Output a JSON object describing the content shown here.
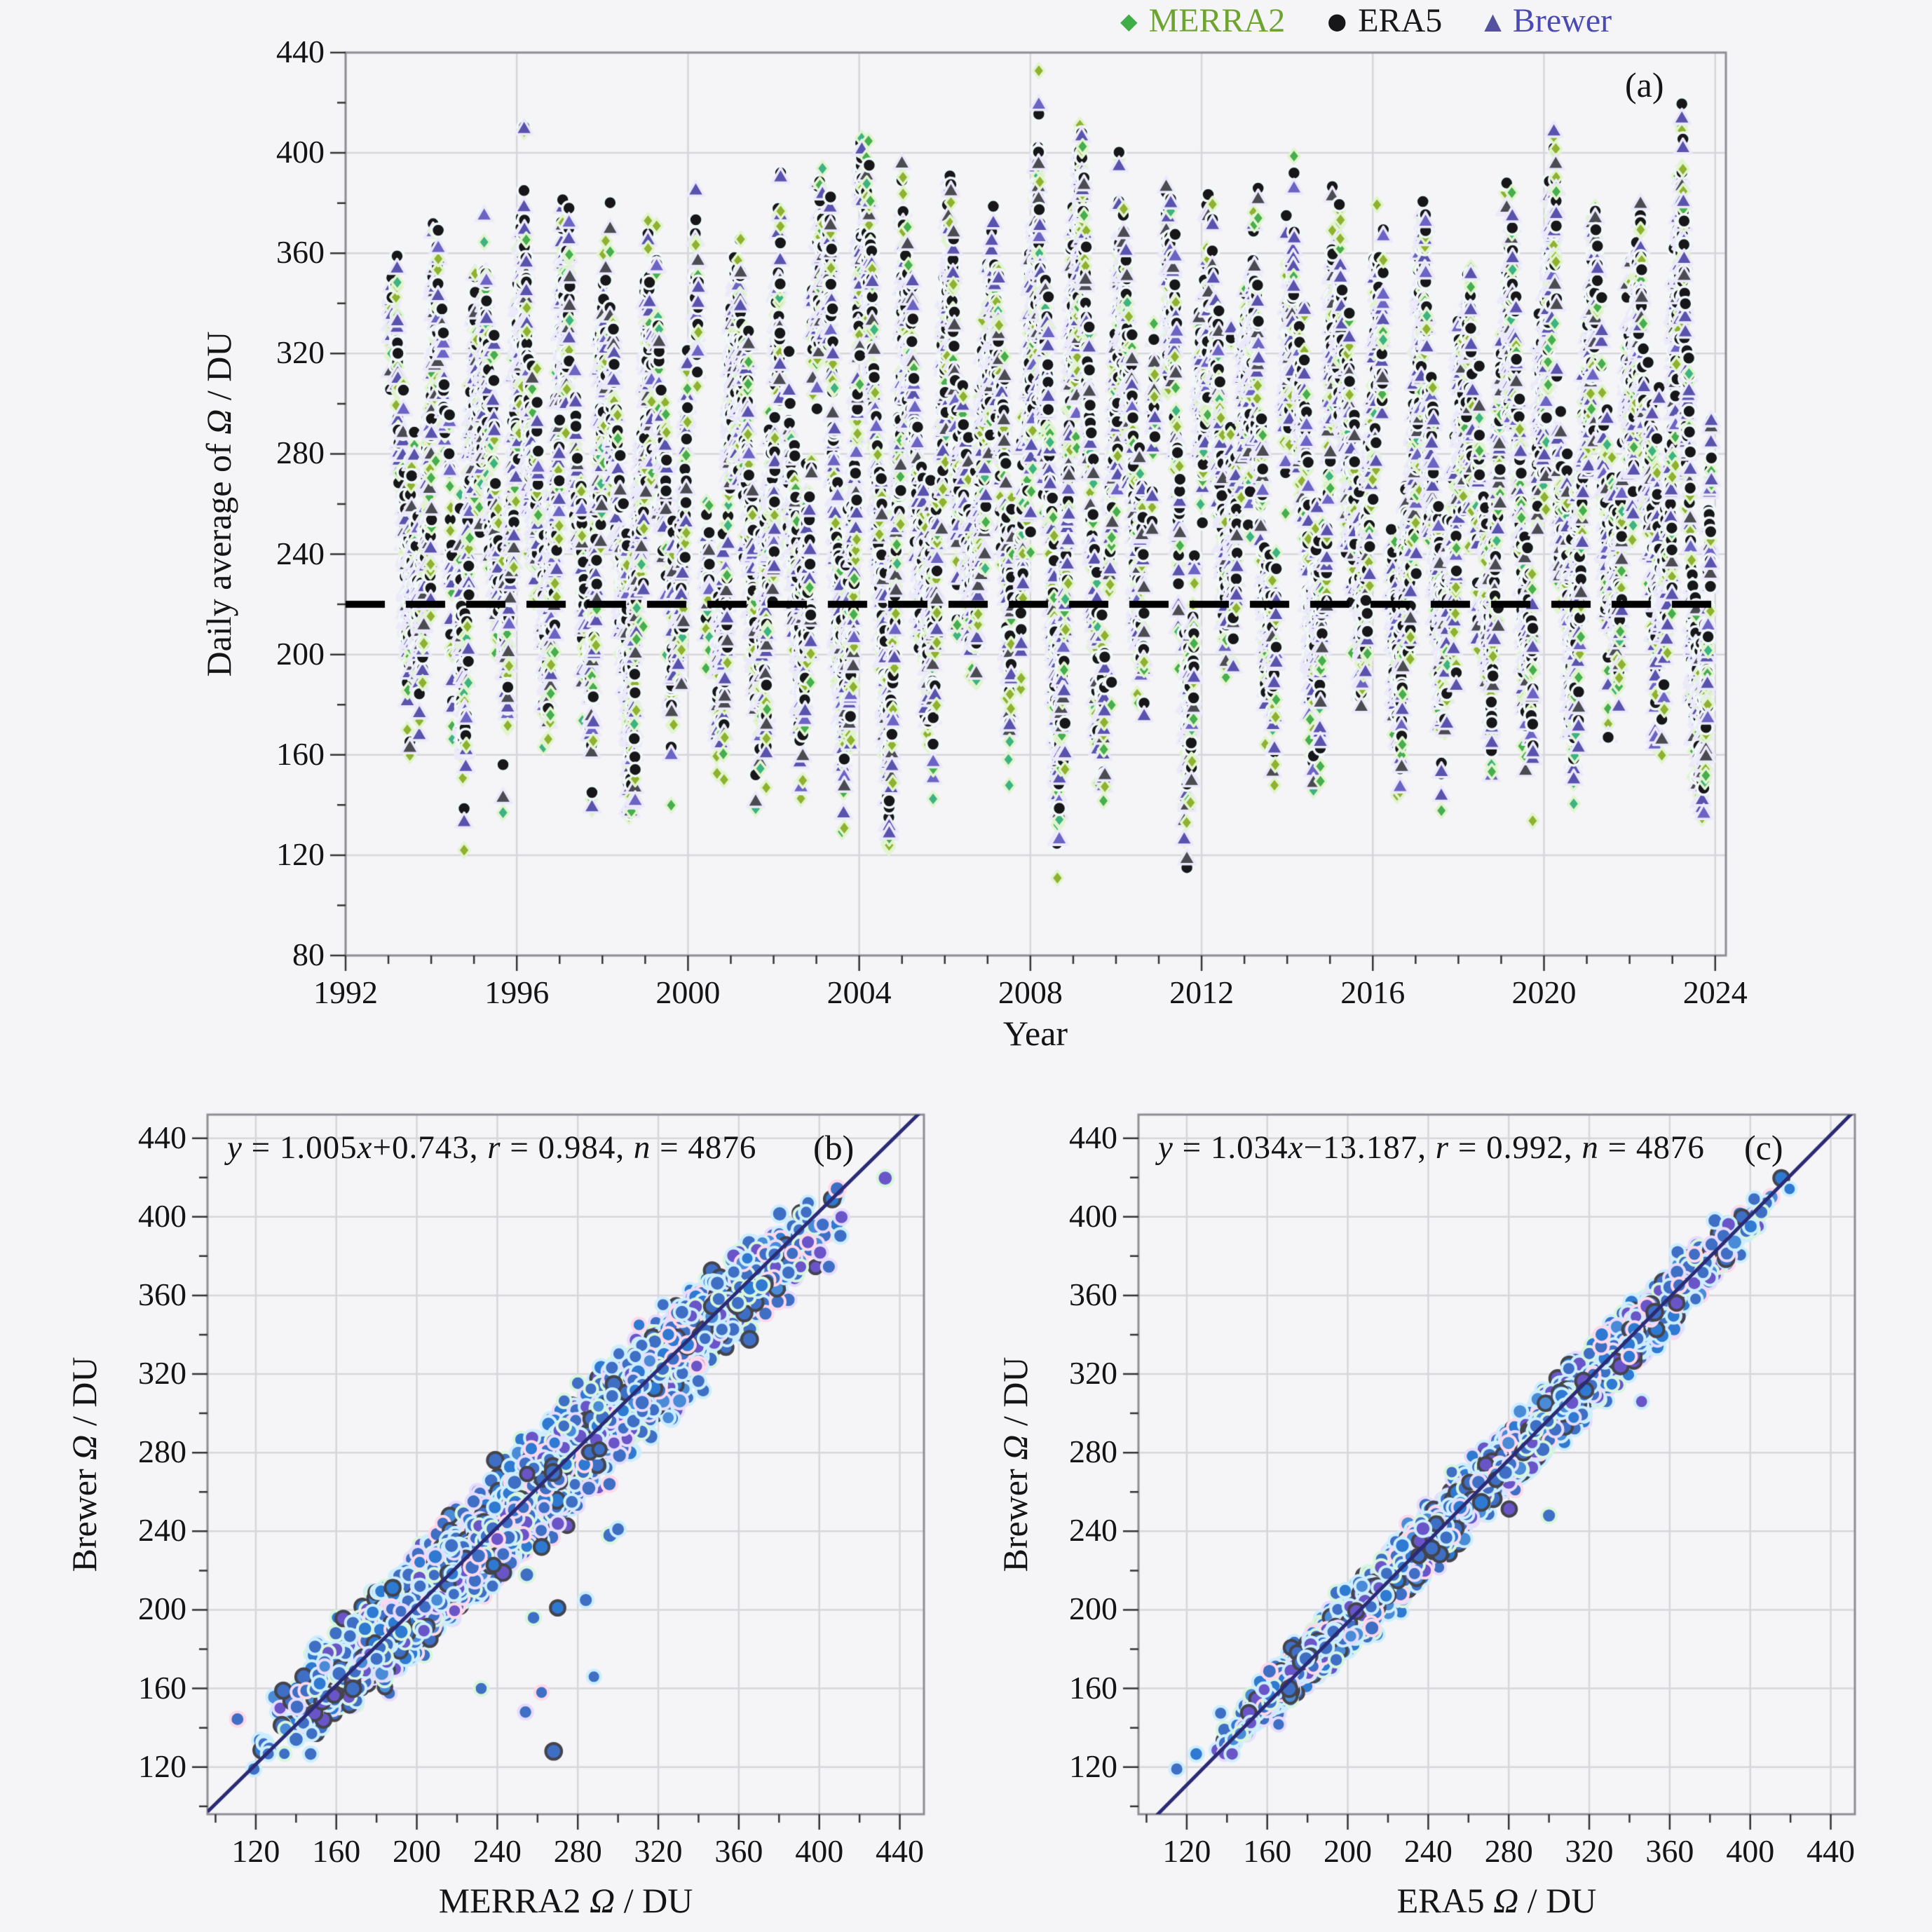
{
  "page": {
    "background": "#f5f5f7",
    "text_color": "#111111"
  },
  "legend": {
    "items": [
      {
        "label": "MERRA2",
        "glyph": "◆",
        "marker_color": "#3fae49",
        "label_color": "#6da32f"
      },
      {
        "label": "ERA5",
        "glyph": "●",
        "marker_color": "#17171a",
        "label_color": "#17171a"
      },
      {
        "label": "Brewer",
        "glyph": "▲",
        "marker_color": "#55519e",
        "label_color": "#4a4ab4"
      }
    ]
  },
  "chart_data": [
    {
      "type": "scatter",
      "panel_label": "(a)",
      "xlabel": "Year",
      "ylabel": "Daily average of Ω / DU",
      "xlim": [
        1992,
        2024.25
      ],
      "ylim": [
        80,
        440
      ],
      "x_ticks": [
        1992,
        1996,
        2000,
        2004,
        2008,
        2012,
        2016,
        2020,
        2024
      ],
      "y_ticks": [
        80,
        120,
        160,
        200,
        240,
        280,
        320,
        360,
        400,
        440
      ],
      "x_minor_step": 1,
      "y_minor_step": 20,
      "grid": true,
      "legend_position": "top-right-above-plot",
      "reference_line": {
        "y": 220,
        "color": "#000000",
        "width": 10,
        "dash": [
          56,
          30
        ]
      },
      "series": [
        {
          "name": "MERRA2",
          "marker": "diamond",
          "fills": [
            "#8fb12f",
            "#46ae4e",
            "#3db382"
          ],
          "halo": "#e2f4cf"
        },
        {
          "name": "ERA5",
          "marker": "circle",
          "fills": [
            "#17171a"
          ],
          "halo": "#f2f8f9"
        },
        {
          "name": "Brewer",
          "marker": "triangle",
          "fills": [
            "#5a53ae",
            "#4b4b52",
            "#6c64c4"
          ],
          "halo": "#eceafa"
        }
      ],
      "render_model": {
        "seed": 20240427,
        "start": 1993.05,
        "end": 2024.02,
        "mean": 266,
        "amplitude_range": [
          52,
          95
        ],
        "peak_phase": 0.16,
        "walk_decay": 0.93,
        "walk_sd": 9,
        "daily_sd": 13,
        "spike_prob": 0.015,
        "spike_sd": 30,
        "month_gap_threshold": 0.18,
        "daily_include_prob": 0.52,
        "value_clamp": [
          106,
          434
        ],
        "era5": {
          "slope": 1.034,
          "intercept": -13.187,
          "resid_sd": 6.5
        },
        "merra2": {
          "slope": 1.005,
          "intercept": 0.743,
          "resid_sd": 10.5
        }
      }
    },
    {
      "type": "scatter",
      "panel_label": "(b)",
      "equation": "y = 1.005x+0.743, r = 0.984, n = 4876",
      "fit": {
        "slope": 1.005,
        "intercept": 0.743,
        "r": 0.984,
        "n": 4876,
        "line_color": "#2b2a74"
      },
      "xlabel": "MERRA2 Ω / DU",
      "ylabel": "Brewer Ω / DU",
      "xlim": [
        96,
        452
      ],
      "ylim": [
        96,
        452
      ],
      "x_ticks": [
        120,
        160,
        200,
        240,
        280,
        320,
        360,
        400,
        440
      ],
      "y_ticks": [
        120,
        160,
        200,
        240,
        280,
        320,
        360,
        400,
        440
      ],
      "minor_step": 20,
      "grid": true,
      "point_fills": [
        "#3e6fc5",
        "#2e79d2",
        "#6a55c8",
        "#4a8bd8"
      ],
      "point_edges": [
        "#cdeeff",
        "#d8f5de",
        "#e7dcff",
        "#ffd9ea",
        "#44444c"
      ],
      "outliers": [
        [
          254,
          148
        ],
        [
          262,
          158
        ],
        [
          288,
          166
        ],
        [
          258,
          196
        ],
        [
          270,
          201
        ],
        [
          284,
          205
        ],
        [
          240,
          236
        ],
        [
          296,
          238
        ],
        [
          210,
          205
        ],
        [
          232,
          160
        ],
        [
          300,
          241
        ],
        [
          268,
          128
        ],
        [
          262,
          232
        ]
      ]
    },
    {
      "type": "scatter",
      "panel_label": "(c)",
      "equation": "y = 1.034x−13.187, r = 0.992, n = 4876",
      "fit": {
        "slope": 1.034,
        "intercept": -13.187,
        "r": 0.992,
        "n": 4876,
        "line_color": "#2b2a74"
      },
      "xlabel": "ERA5 Ω / DU",
      "ylabel": "Brewer Ω / DU",
      "xlim": [
        96,
        452
      ],
      "ylim": [
        96,
        452
      ],
      "x_ticks": [
        120,
        160,
        200,
        240,
        280,
        320,
        360,
        400,
        440
      ],
      "y_ticks": [
        120,
        160,
        200,
        240,
        280,
        320,
        360,
        400,
        440
      ],
      "minor_step": 20,
      "grid": true,
      "point_fills": [
        "#3e6fc5",
        "#2e79d2",
        "#6a55c8",
        "#4a8bd8"
      ],
      "point_edges": [
        "#cdeeff",
        "#d8f5de",
        "#e7dcff",
        "#ffd9ea",
        "#44444c"
      ],
      "outliers": [
        [
          346,
          306
        ],
        [
          300,
          248
        ]
      ]
    }
  ]
}
